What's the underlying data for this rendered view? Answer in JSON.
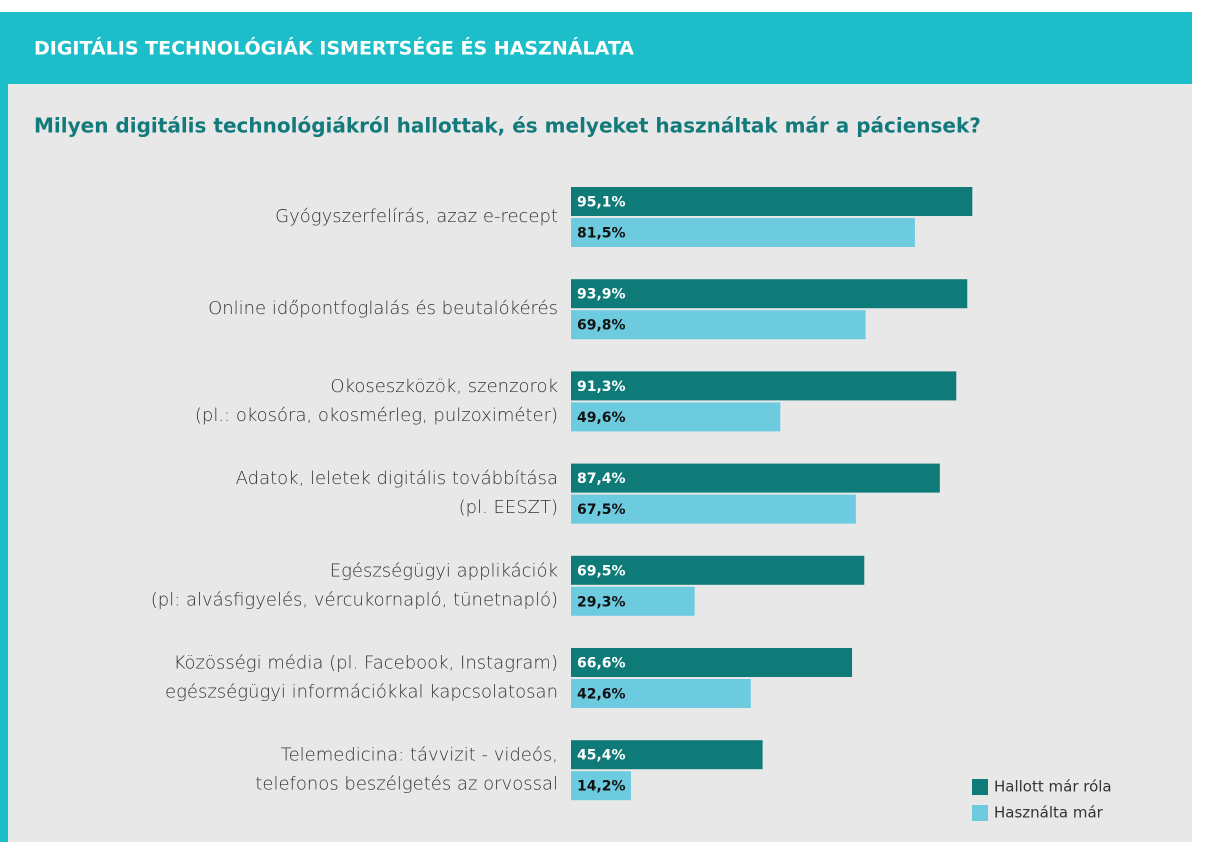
{
  "chart_data": {
    "type": "hbar",
    "header": "DIGITÁLIS TECHNOLÓGIÁK ISMERTSÉGE ÉS HASZNÁLATA",
    "title": "Milyen digitális technológiákról hallottak, és melyeket használtak már a páciensek?",
    "categories": [
      [
        "Gyógyszerfelírás, azaz e-recept"
      ],
      [
        "Online időpontfoglalás és beutalókérés"
      ],
      [
        "Okoseszközök, szenzorok",
        "(pl.: okosóra, okosmérleg, pulzoximéter)"
      ],
      [
        "Adatok, leletek digitális továbbítása",
        "(pl. EESZT)"
      ],
      [
        "Egészségügyi applikációk",
        "(pl: alvásfigyelés, vércukornapló, tünetnapló)"
      ],
      [
        "Közösségi média (pl. Facebook, Instagram)",
        "egészségügyi információkkal kapcsolatosan"
      ],
      [
        "Telemedicina: távvizit - videós,",
        "telefonos beszélgetés az orvossal"
      ]
    ],
    "series": [
      {
        "name": "Hallott már róla",
        "color": "#0e7b79",
        "label_color": "#ffffff",
        "values": [
          95.1,
          93.9,
          91.3,
          87.4,
          69.5,
          66.6,
          45.4
        ],
        "value_labels": [
          "95,1%",
          "93,9%",
          "91,3%",
          "87,4%",
          "69,5%",
          "66,6%",
          "45,4%"
        ]
      },
      {
        "name": "Használta már",
        "color": "#6dcbe0",
        "label_color": "#111111",
        "values": [
          81.5,
          69.8,
          49.6,
          67.5,
          29.3,
          42.6,
          14.2
        ],
        "value_labels": [
          "81,5%",
          "69,8%",
          "49,6%",
          "67,5%",
          "29,3%",
          "42,6%",
          "14,2%"
        ]
      }
    ],
    "xlim": [
      0,
      100
    ],
    "legend": "bottom-right"
  }
}
